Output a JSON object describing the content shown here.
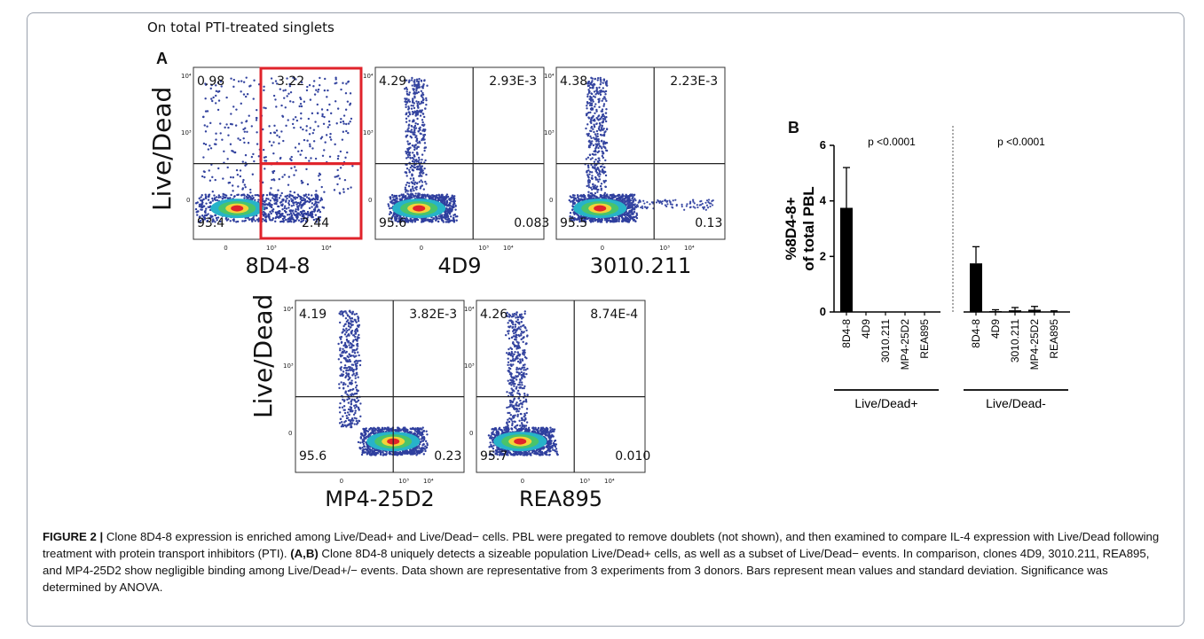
{
  "header_note": "On total PTI-treated singlets",
  "panel_a_label": "A",
  "panel_b_label": "B",
  "y_axis_title": "Live/Dead",
  "flow_plots": [
    {
      "x_label": "8D4-8",
      "quadrants": {
        "ul": "0.98",
        "ur": "3.22",
        "ll": "93.4",
        "lr": "2.44"
      },
      "highlight_right": true
    },
    {
      "x_label": "4D9",
      "quadrants": {
        "ul": "4.29",
        "ur": "2.93E-3",
        "ll": "95.6",
        "lr": "0.083"
      }
    },
    {
      "x_label": "3010.211",
      "quadrants": {
        "ul": "4.38",
        "ur": "2.23E-3",
        "ll": "95.5",
        "lr": "0.13"
      }
    },
    {
      "x_label": "MP4-25D2",
      "quadrants": {
        "ul": "4.19",
        "ur": "3.82E-3",
        "ll": "95.6",
        "lr": "0.23"
      }
    },
    {
      "x_label": "REA895",
      "quadrants": {
        "ul": "4.26",
        "ur": "8.74E-4",
        "ll": "95.7",
        "lr": "0.010"
      }
    }
  ],
  "chart_data": {
    "type": "bar",
    "ylabel": "%8D4-8+ of total PBL",
    "ylim": [
      0,
      6
    ],
    "yticks": [
      "0",
      "2",
      "4",
      "6"
    ],
    "groups": [
      {
        "name": "Live/Dead+",
        "pvalue": "p <0.0001",
        "categories": [
          "8D4-8",
          "4D9",
          "3010.211",
          "MP4-25D2",
          "REA895"
        ],
        "values": [
          3.75,
          0.01,
          0.01,
          0.01,
          0.01
        ],
        "errors": [
          1.45,
          0.0,
          0.0,
          0.0,
          0.0
        ]
      },
      {
        "name": "Live/Dead-",
        "pvalue": "p <0.0001",
        "categories": [
          "8D4-8",
          "4D9",
          "3010.211",
          "MP4-25D2",
          "REA895"
        ],
        "values": [
          1.75,
          0.03,
          0.06,
          0.08,
          0.01
        ],
        "errors": [
          0.6,
          0.05,
          0.1,
          0.12,
          0.03
        ]
      }
    ]
  },
  "caption": {
    "label": "FIGURE 2 |",
    "text": " Clone 8D4-8 expression is enriched among Live/Dead+ and Live/Dead− cells. PBL were pregated to remove doublets (not shown), and then examined to compare IL-4 expression with Live/Dead following treatment with protein transport inhibitors (PTI). ",
    "bold_ref": "(A,B)",
    "text2": " Clone 8D4-8 uniquely detects a sizeable population Live/Dead+ cells, as well as a subset of Live/Dead− events. In comparison, clones 4D9, 3010.211, REA895, and MP4-25D2 show negligible binding among Live/Dead+/− events. Data shown are representative from 3 experiments from 3 donors. Bars represent mean values and standard deviation. Significance was determined by ANOVA."
  },
  "colors": {
    "highlight": "#e0232b",
    "population_blue": "#2f3f9e",
    "bar": "#000000",
    "frame": "#9aa1ad"
  }
}
